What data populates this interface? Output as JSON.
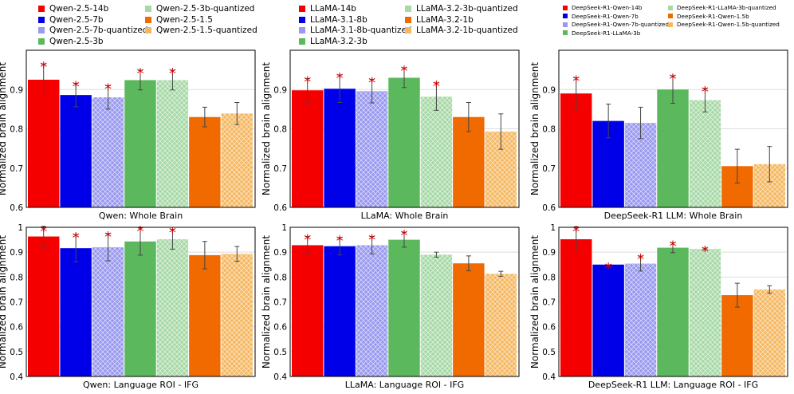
{
  "colors": {
    "red": "#f50000",
    "blue": "#0000e8",
    "lavender": "#9999f0",
    "green": "#5cb85c",
    "lightgreen": "#a6d9a6",
    "orange": "#f06a00",
    "lightorange": "#f5b862",
    "axis": "#000000",
    "grid": "#dddddd",
    "errorbar": "#444444",
    "star": "#d00000"
  },
  "legends": [
    {
      "font_size": "small",
      "entries": [
        {
          "label": "Qwen-2.5-14b",
          "color": "red",
          "hatch": false
        },
        {
          "label": "Qwen-2.5-7b",
          "color": "blue",
          "hatch": false
        },
        {
          "label": "Qwen-2.5-7b-quantized",
          "color": "lavender",
          "hatch": true
        },
        {
          "label": "Qwen-2.5-3b",
          "color": "green",
          "hatch": false
        },
        {
          "label": "Qwen-2.5-3b-quantized",
          "color": "lightgreen",
          "hatch": true
        },
        {
          "label": "Qwen-2.5-1.5",
          "color": "orange",
          "hatch": false
        },
        {
          "label": "Qwen-2.5-1.5-quantized",
          "color": "lightorange",
          "hatch": true
        }
      ]
    },
    {
      "font_size": "small",
      "entries": [
        {
          "label": "LLaMA-14b",
          "color": "red",
          "hatch": false
        },
        {
          "label": "LLaMA-3.1-8b",
          "color": "blue",
          "hatch": false
        },
        {
          "label": "LLaMA-3.1-8b-quantized",
          "color": "lavender",
          "hatch": true
        },
        {
          "label": "LLaMA-3.2-3b",
          "color": "green",
          "hatch": false
        },
        {
          "label": "LLaMA-3.2-3b-quantized",
          "color": "lightgreen",
          "hatch": true
        },
        {
          "label": "LLaMA-3.2-1b",
          "color": "orange",
          "hatch": false
        },
        {
          "label": "LLaMA-3.2-1b-quantized",
          "color": "lightorange",
          "hatch": true
        }
      ]
    },
    {
      "font_size": "tiny",
      "entries": [
        {
          "label": "DeepSeek-R1-Qwen-14b",
          "color": "red",
          "hatch": false
        },
        {
          "label": "DeepSeek-R1-Qwen-7b",
          "color": "blue",
          "hatch": false
        },
        {
          "label": "DeepSeek-R1-Qwen-7b-quantized",
          "color": "lavender",
          "hatch": true
        },
        {
          "label": "DeepSeek-R1-LLaMA-3b",
          "color": "green",
          "hatch": false
        },
        {
          "label": "DeepSeek-R1-LLaMA-3b-quantized",
          "color": "lightgreen",
          "hatch": true
        },
        {
          "label": "DeepSeek-R1-Qwen-1.5b",
          "color": "orange",
          "hatch": false
        },
        {
          "label": "DeepSeek-R1-Qwen-1.5b-quantized",
          "color": "lightorange",
          "hatch": true
        }
      ]
    }
  ],
  "chart_data": [
    {
      "type": "bar",
      "title": "Qwen: Whole Brain",
      "ylabel": "Normalized brain alignment",
      "ylim": [
        0.6,
        1.0
      ],
      "yticks": [
        "0.6",
        "0.7",
        "0.8",
        "0.9"
      ],
      "categories": [
        "Qwen-2.5-14b",
        "Qwen-2.5-7b",
        "Qwen-2.5-7b-quantized",
        "Qwen-2.5-3b",
        "Qwen-2.5-3b-quantized",
        "Qwen-2.5-1.5",
        "Qwen-2.5-1.5-quantized"
      ],
      "values": [
        0.925,
        0.886,
        0.88,
        0.924,
        0.924,
        0.83,
        0.839
      ],
      "errors": [
        0.04,
        0.03,
        0.03,
        0.025,
        0.025,
        0.025,
        0.028
      ],
      "significant": [
        true,
        true,
        true,
        true,
        true,
        false,
        false
      ]
    },
    {
      "type": "bar",
      "title": "LLaMA: Whole Brain",
      "ylabel": "Normalized brain alignment",
      "ylim": [
        0.6,
        1.0
      ],
      "yticks": [
        "0.6",
        "0.7",
        "0.8",
        "0.9"
      ],
      "categories": [
        "LLaMA-14b",
        "LLaMA-3.1-8b",
        "LLaMA-3.1-8b-quantized",
        "LLaMA-3.2-3b",
        "LLaMA-3.2-3b-quantized",
        "LLaMA-3.2-1b",
        "LLaMA-3.2-1b-quantized"
      ],
      "values": [
        0.898,
        0.902,
        0.896,
        0.93,
        0.882,
        0.83,
        0.793
      ],
      "errors": [
        0.03,
        0.035,
        0.03,
        0.025,
        0.035,
        0.037,
        0.045
      ],
      "significant": [
        true,
        true,
        true,
        true,
        true,
        false,
        false
      ]
    },
    {
      "type": "bar",
      "title": "DeepSeek-R1 LLM: Whole Brain",
      "ylabel": "Normalized brain alignment",
      "ylim": [
        0.6,
        1.0
      ],
      "yticks": [
        "0.6",
        "0.7",
        "0.8",
        "0.9"
      ],
      "categories": [
        "DeepSeek-R1-Qwen-14b",
        "DeepSeek-R1-Qwen-7b",
        "DeepSeek-R1-Qwen-7b-quantized",
        "DeepSeek-R1-LLaMA-3b",
        "DeepSeek-R1-LLaMA-3b-quantized",
        "DeepSeek-R1-Qwen-1.5b",
        "DeepSeek-R1-Qwen-1.5b-quantized"
      ],
      "values": [
        0.89,
        0.82,
        0.815,
        0.9,
        0.873,
        0.705,
        0.71
      ],
      "errors": [
        0.04,
        0.043,
        0.04,
        0.035,
        0.03,
        0.043,
        0.045
      ],
      "significant": [
        true,
        false,
        false,
        true,
        true,
        false,
        false
      ]
    },
    {
      "type": "bar",
      "title": "Qwen: Language ROI - IFG",
      "ylabel": "Normalized brain alignment",
      "ylim": [
        0.4,
        1.0
      ],
      "yticks": [
        "0.4",
        "0.5",
        "0.6",
        "0.7",
        "0.8",
        "0.9",
        "1"
      ],
      "categories": [
        "Qwen-2.5-14b",
        "Qwen-2.5-7b",
        "Qwen-2.5-7b-quantized",
        "Qwen-2.5-3b",
        "Qwen-2.5-3b-quantized",
        "Qwen-2.5-1.5",
        "Qwen-2.5-1.5-quantized"
      ],
      "values": [
        0.963,
        0.916,
        0.92,
        0.943,
        0.952,
        0.888,
        0.893
      ],
      "errors": [
        0.04,
        0.055,
        0.055,
        0.055,
        0.04,
        0.055,
        0.03
      ],
      "significant": [
        true,
        true,
        true,
        true,
        true,
        false,
        false
      ]
    },
    {
      "type": "bar",
      "title": "LLaMA: Language ROI - IFG",
      "ylabel": "Normalized brain alignment",
      "ylim": [
        0.4,
        1.0
      ],
      "yticks": [
        "0.4",
        "0.5",
        "0.6",
        "0.7",
        "0.8",
        "0.9",
        "1"
      ],
      "categories": [
        "LLaMA-14b",
        "LLaMA-3.1-8b",
        "LLaMA-3.1-8b-quantized",
        "LLaMA-3.2-3b",
        "LLaMA-3.2-3b-quantized",
        "LLaMA-3.2-1b",
        "LLaMA-3.2-1b-quantized"
      ],
      "values": [
        0.928,
        0.924,
        0.928,
        0.95,
        0.89,
        0.855,
        0.813
      ],
      "errors": [
        0.035,
        0.035,
        0.035,
        0.03,
        0.01,
        0.03,
        0.01
      ],
      "significant": [
        true,
        true,
        true,
        true,
        false,
        false,
        false
      ]
    },
    {
      "type": "bar",
      "title": "DeepSeek-R1 LLM: Language ROI - IFG",
      "ylabel": "Normalized brain alignment",
      "ylim": [
        0.4,
        1.0
      ],
      "yticks": [
        "0.4",
        "0.5",
        "0.6",
        "0.7",
        "0.8",
        "0.9",
        "1"
      ],
      "categories": [
        "DeepSeek-R1-Qwen-14b",
        "DeepSeek-R1-Qwen-7b",
        "DeepSeek-R1-Qwen-7b-quantized",
        "DeepSeek-R1-LLaMA-3b",
        "DeepSeek-R1-LLaMA-3b-quantized",
        "DeepSeek-R1-Qwen-1.5b",
        "DeepSeek-R1-Qwen-1.5b-quantized"
      ],
      "values": [
        0.952,
        0.85,
        0.854,
        0.918,
        0.913,
        0.727,
        0.75
      ],
      "errors": [
        0.05,
        0.0,
        0.03,
        0.02,
        0.003,
        0.048,
        0.015
      ],
      "significant": [
        true,
        true,
        true,
        true,
        true,
        false,
        false
      ]
    }
  ]
}
